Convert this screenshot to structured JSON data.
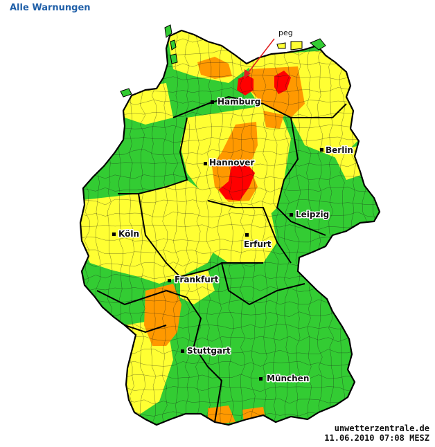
{
  "header": {
    "link_label": "Alle Warnungen"
  },
  "colors": {
    "no_warning": "#33cc33",
    "level1": "#ffff33",
    "level2": "#ff9900",
    "level3": "#ff0000",
    "border": "#000000",
    "water": "#ffffff"
  },
  "annotation": {
    "label": "peg"
  },
  "cities": [
    {
      "name": "Hamburg"
    },
    {
      "name": "Berlin"
    },
    {
      "name": "Hannover"
    },
    {
      "name": "Leipzig"
    },
    {
      "name": "Köln"
    },
    {
      "name": "Erfurt"
    },
    {
      "name": "Frankfurt"
    },
    {
      "name": "Stuttgart"
    },
    {
      "name": "München"
    }
  ],
  "footer": {
    "site": "unwetterzentrale.de",
    "timestamp": "11.06.2010 07:08 MESZ"
  }
}
